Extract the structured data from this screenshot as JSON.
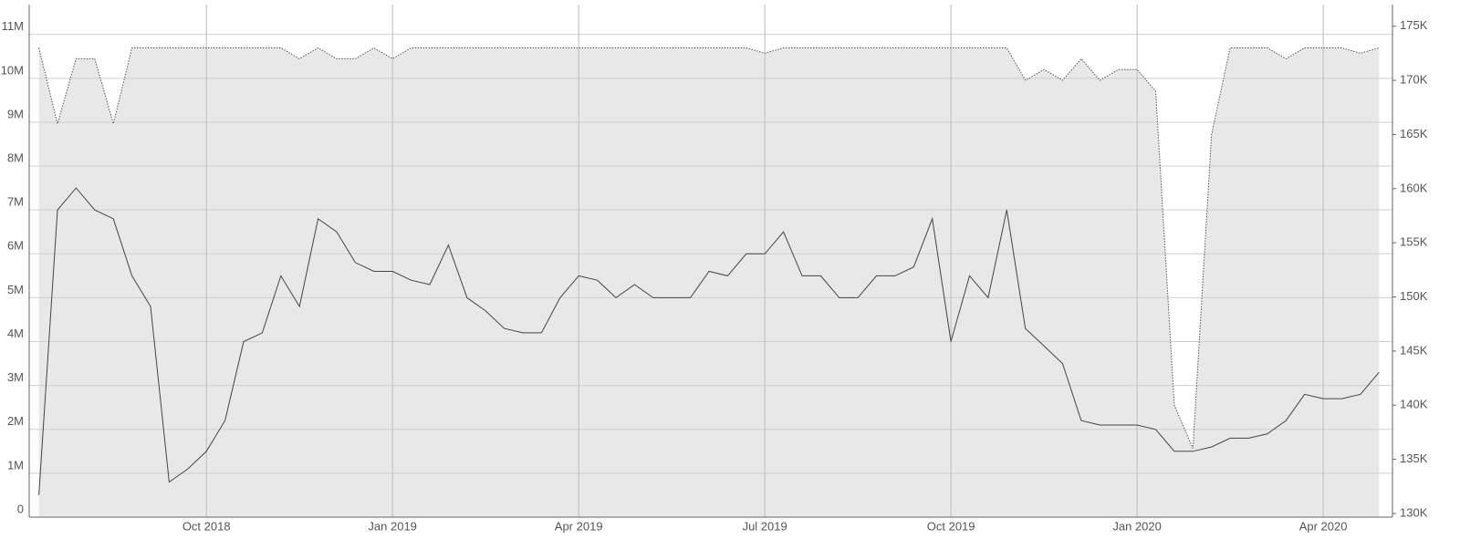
{
  "chart_data": {
    "type": "line",
    "x": [
      2018.525,
      2018.55,
      2018.575,
      2018.6,
      2018.625,
      2018.65,
      2018.675,
      2018.7,
      2018.725,
      2018.75,
      2018.775,
      2018.8,
      2018.825,
      2018.85,
      2018.875,
      2018.9,
      2018.925,
      2018.95,
      2018.975,
      2019.0,
      2019.025,
      2019.05,
      2019.075,
      2019.1,
      2019.125,
      2019.15,
      2019.175,
      2019.2,
      2019.225,
      2019.25,
      2019.275,
      2019.3,
      2019.325,
      2019.35,
      2019.375,
      2019.4,
      2019.425,
      2019.45,
      2019.475,
      2019.5,
      2019.525,
      2019.55,
      2019.575,
      2019.6,
      2019.625,
      2019.65,
      2019.675,
      2019.7,
      2019.725,
      2019.75,
      2019.775,
      2019.8,
      2019.825,
      2019.85,
      2019.875,
      2019.9,
      2019.925,
      2019.95,
      2019.975,
      2020.0,
      2020.025,
      2020.05,
      2020.075,
      2020.1,
      2020.125,
      2020.15,
      2020.175,
      2020.2,
      2020.225,
      2020.25,
      2020.275,
      2020.3,
      2020.325
    ],
    "series": [
      {
        "color": "#444444",
        "style": "solid",
        "values": [
          500000,
          7000000,
          7500000,
          7000000,
          6800000,
          5500000,
          4800000,
          800000,
          1100000,
          1500000,
          2200000,
          4000000,
          4200000,
          5500000,
          4800000,
          6800000,
          6500000,
          5800000,
          5600000,
          5600000,
          5400000,
          5300000,
          6200000,
          5000000,
          4700000,
          4300000,
          4200000,
          4200000,
          5000000,
          5500000,
          5400000,
          5000000,
          5300000,
          5000000,
          5000000,
          5000000,
          5600000,
          5500000,
          6000000,
          6000000,
          6500000,
          5500000,
          5500000,
          5000000,
          5000000,
          5500000,
          5500000,
          5700000,
          6800000,
          4000000,
          5500000,
          5000000,
          7000000,
          4300000,
          3900000,
          3500000,
          2200000,
          2100000,
          2100000,
          2100000,
          2000000,
          1500000,
          1500000,
          1600000,
          1800000,
          1800000,
          1900000,
          2200000,
          2800000,
          2700000,
          2700000,
          2800000,
          3300000
        ]
      },
      {
        "color": "#555555",
        "style": "dotted",
        "fill": "#e8e8e8",
        "axis": "y2",
        "values": [
          173000,
          166000,
          172000,
          172000,
          166000,
          173000,
          173000,
          173000,
          173000,
          173000,
          173000,
          173000,
          173000,
          173000,
          172000,
          173000,
          172000,
          172000,
          173000,
          172000,
          173000,
          173000,
          173000,
          173000,
          173000,
          173000,
          173000,
          173000,
          173000,
          173000,
          173000,
          173000,
          173000,
          173000,
          173000,
          173000,
          173000,
          173000,
          173000,
          172500,
          173000,
          173000,
          173000,
          173000,
          173000,
          173000,
          173000,
          173000,
          173000,
          173000,
          173000,
          173000,
          173000,
          170000,
          171000,
          170000,
          172000,
          170000,
          171000,
          171000,
          169000,
          140000,
          136000,
          165000,
          173000,
          173000,
          173000,
          172000,
          173000,
          173000,
          173000,
          172500,
          173000
        ]
      }
    ],
    "xlim": [
      2018.512,
      2020.343
    ],
    "xticks": [
      {
        "value": 2018.75,
        "label": "Oct 2018"
      },
      {
        "value": 2019.0,
        "label": "Jan 2019"
      },
      {
        "value": 2019.25,
        "label": "Apr 2019"
      },
      {
        "value": 2019.5,
        "label": "Jul 2019"
      },
      {
        "value": 2019.75,
        "label": "Oct 2019"
      },
      {
        "value": 2020.0,
        "label": "Jan 2020"
      },
      {
        "value": 2020.25,
        "label": "Apr 2020"
      }
    ],
    "ylim": [
      0,
      11680000
    ],
    "yticks": [
      0,
      {
        "value": 1000000,
        "label": "1M"
      },
      {
        "value": 2000000,
        "label": "2M"
      },
      {
        "value": 3000000,
        "label": "3M"
      },
      {
        "value": 4000000,
        "label": "4M"
      },
      {
        "value": 5000000,
        "label": "5M"
      },
      {
        "value": 6000000,
        "label": "6M"
      },
      {
        "value": 7000000,
        "label": "7M"
      },
      {
        "value": 8000000,
        "label": "8M"
      },
      {
        "value": 9000000,
        "label": "9M"
      },
      {
        "value": 10000000,
        "label": "10M"
      },
      {
        "value": 11000000,
        "label": "11M"
      }
    ],
    "y2lim": [
      129660,
      177000
    ],
    "y2ticks": [
      {
        "value": 130000,
        "label": "130K"
      },
      {
        "value": 135000,
        "label": "135K"
      },
      {
        "value": 140000,
        "label": "140K"
      },
      {
        "value": 145000,
        "label": "145K"
      },
      {
        "value": 150000,
        "label": "150K"
      },
      {
        "value": 155000,
        "label": "155K"
      },
      {
        "value": 160000,
        "label": "160K"
      },
      {
        "value": 165000,
        "label": "165K"
      },
      {
        "value": 170000,
        "label": "170K"
      },
      {
        "value": 175000,
        "label": "175K"
      }
    ],
    "grid": true
  }
}
